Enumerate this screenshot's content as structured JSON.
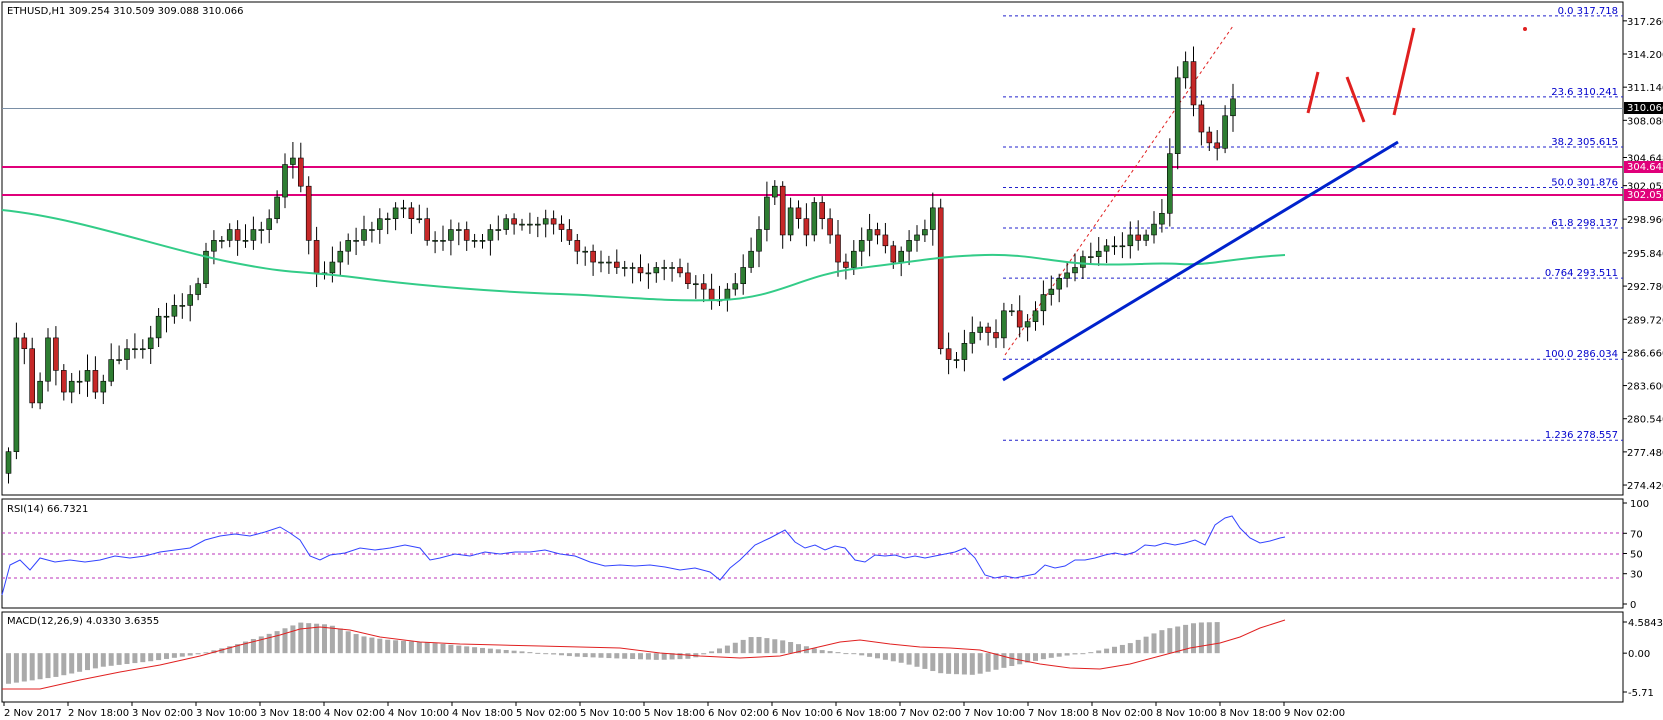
{
  "header": {
    "symbol": "ETHUSD,H1",
    "ohlc": "309.254 310.509 309.088 310.066"
  },
  "indicators": {
    "rsi_label": "RSI(14) 66.7321",
    "macd_label": "MACD(12,26,9) 4.0330 3.6355"
  },
  "price_tags": {
    "current": "310.066",
    "resistance_1": "304.648",
    "resistance_2": "302.052"
  },
  "fib_labels": [
    "0.0  317.718",
    "23.6  310.241",
    "38.2  305.615",
    "50.0  301.876",
    "61.8  298.137",
    "0.764  293.511",
    "100.0  286.034",
    "1.236  278.557"
  ],
  "colors": {
    "bull": "#2e7d32",
    "bear": "#c62828",
    "ma": "#33cc88",
    "trendline": "#0022cc",
    "fib": "#2222cc",
    "resistance": "#e0007a",
    "rsi_line": "#3344ff",
    "macd_signal": "#e02020",
    "macd_hist": "#aaaaaa",
    "arrow": "#e02020"
  },
  "chart_data": {
    "type": "candlestick",
    "title": "ETHUSD,H1",
    "price_axis_ticks": [
      "317.260",
      "314.200",
      "311.140",
      "308.080",
      "304.648",
      "302.052",
      "298.960",
      "295.840",
      "292.780",
      "289.720",
      "286.660",
      "283.600",
      "280.540",
      "277.480",
      "274.420"
    ],
    "time_axis_labels": [
      "2 Nov 2017",
      "2 Nov 18:00",
      "3 Nov 02:00",
      "3 Nov 10:00",
      "3 Nov 18:00",
      "4 Nov 02:00",
      "4 Nov 10:00",
      "4 Nov 18:00",
      "5 Nov 02:00",
      "5 Nov 10:00",
      "5 Nov 18:00",
      "6 Nov 02:00",
      "6 Nov 10:00",
      "6 Nov 18:00",
      "7 Nov 02:00",
      "7 Nov 10:00",
      "7 Nov 18:00",
      "8 Nov 02:00",
      "8 Nov 10:00",
      "8 Nov 18:00",
      "9 Nov 02:00"
    ],
    "ylim": [
      273.5,
      319.0
    ],
    "horizontal_levels": [
      {
        "label": "304.648",
        "value": 304.648
      },
      {
        "label": "302.052",
        "value": 302.052
      }
    ],
    "current_price": 310.066,
    "fibonacci": [
      {
        "level": "0.0",
        "price": 317.718
      },
      {
        "level": "23.6",
        "price": 310.241
      },
      {
        "level": "38.2",
        "price": 305.615
      },
      {
        "level": "50.0",
        "price": 301.876
      },
      {
        "level": "61.8",
        "price": 298.137
      },
      {
        "level": "0.764",
        "price": 293.511
      },
      {
        "level": "100.0",
        "price": 286.034
      },
      {
        "level": "1.236",
        "price": 278.557
      }
    ],
    "rsi": {
      "label": "RSI(14)",
      "value": 66.7321,
      "ticks": [
        "100",
        "70",
        "50",
        "30",
        "0"
      ],
      "levels": [
        70,
        50,
        30
      ]
    },
    "macd": {
      "label": "MACD(12,26,9)",
      "macd": 4.033,
      "signal": 3.6355,
      "ticks": [
        "4.5843",
        "0.00",
        "-5.71"
      ],
      "ylim": [
        -5.71,
        4.5843
      ]
    },
    "closes": [
      277.5,
      288,
      287,
      282,
      284,
      288,
      285,
      283,
      284,
      284,
      285,
      283,
      284,
      286,
      286,
      287,
      287,
      287,
      288,
      290,
      290,
      291,
      291,
      292,
      293,
      296,
      297,
      297,
      298,
      297,
      297,
      298,
      298,
      299,
      301,
      304,
      304.6,
      302,
      297,
      294,
      294,
      295,
      296,
      297,
      297,
      298,
      298,
      299,
      299,
      300,
      300,
      299,
      299,
      297,
      297,
      297,
      298,
      298,
      297,
      297,
      297,
      298,
      298,
      299,
      298.5,
      298.5,
      298.5,
      298.5,
      299,
      298.5,
      298,
      297,
      296,
      296,
      295,
      295,
      295,
      294.5,
      294.5,
      294.5,
      294,
      294,
      294.5,
      294.5,
      294.5,
      294,
      293,
      293,
      292.5,
      291.5,
      291.5,
      292.5,
      293,
      294.5,
      296,
      298,
      301,
      302,
      297.5,
      300,
      299,
      297.5,
      300.5,
      299,
      297.5,
      295,
      294.5,
      296,
      297,
      298,
      297.5,
      296.5,
      295,
      296,
      297,
      297.5,
      298,
      300,
      287,
      286,
      286,
      287.5,
      288.5,
      289,
      288.5,
      288,
      290.5,
      290.5,
      289,
      289.5,
      290.5,
      292,
      292.5,
      293.5,
      294,
      294.5,
      295.5,
      295.5,
      296,
      296.5,
      296.5,
      296.5,
      297.5,
      297,
      297.5,
      298.5,
      299.5,
      305,
      312,
      313.5,
      309.5,
      307,
      306,
      305.5,
      308.5,
      310.066
    ]
  }
}
